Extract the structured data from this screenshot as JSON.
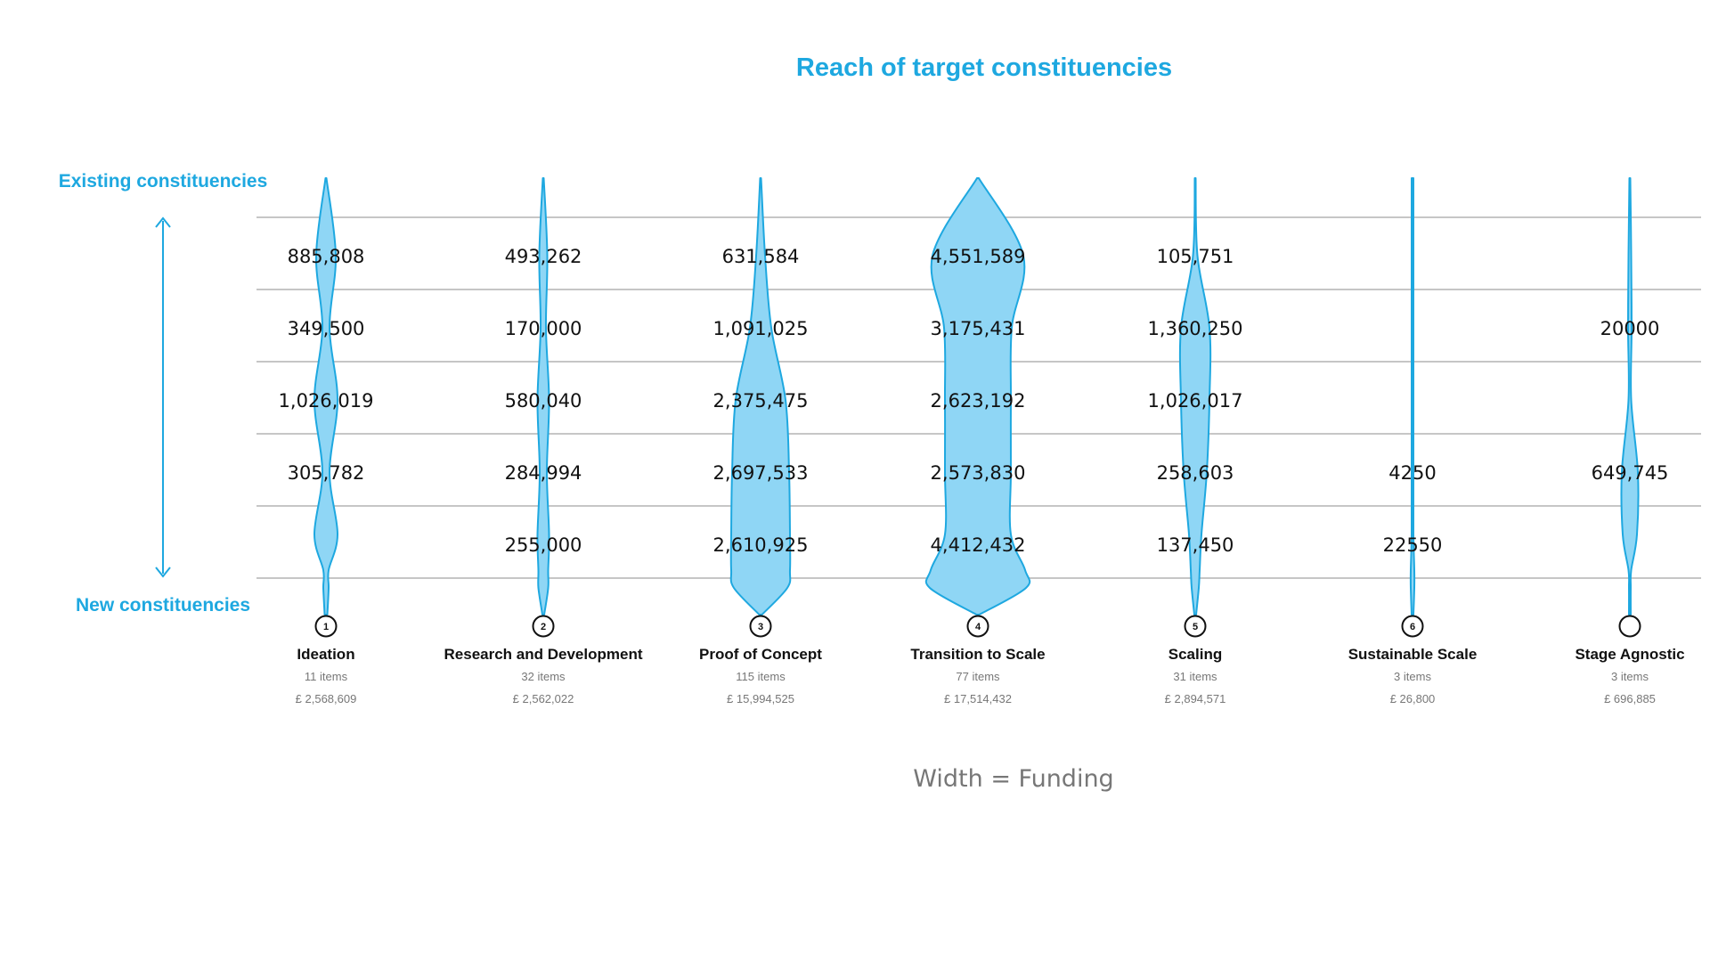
{
  "chart_data": {
    "type": "violin",
    "title": "Reach of target constituencies",
    "y_top_label": "Existing constituencies",
    "y_bottom_label": "New constituencies",
    "footnote": "Width = Funding",
    "accent_color": "#1ea8e0",
    "fill_color": "#8fd6f5",
    "grid_color": "#b3b3b3",
    "stages": [
      {
        "number": "1",
        "name": "Ideation",
        "items": "11 items",
        "funding": "£ 2,568,609",
        "values": [
          "885,808",
          "349,500",
          "1,026,019",
          "305,782",
          ""
        ],
        "profile": [
          0.5,
          11,
          4,
          13,
          4,
          13,
          3,
          3,
          1.5
        ]
      },
      {
        "number": "2",
        "name": "Research and Development",
        "items": "32 items",
        "funding": "£ 2,562,022",
        "values": [
          "493,262",
          "170,000",
          "580,040",
          "284,994",
          "255,000"
        ],
        "profile": [
          0.5,
          4.5,
          3,
          6.5,
          4,
          6.5,
          5.5,
          5.5,
          1
        ]
      },
      {
        "number": "3",
        "name": "Proof of Concept",
        "items": "115 items",
        "funding": "£ 15,994,525",
        "values": [
          "631,584",
          "1,091,025",
          "2,375,475",
          "2,697,533",
          "2,610,925"
        ],
        "profile": [
          0.5,
          5,
          12,
          28,
          32,
          33,
          33,
          30,
          1.5
        ]
      },
      {
        "number": "4",
        "name": "Transition to Scale",
        "items": "77 items",
        "funding": "£ 17,514,432",
        "values": [
          "4,551,589",
          "3,175,431",
          "2,623,192",
          "2,573,830",
          "4,412,432"
        ],
        "profile": [
          1,
          51,
          38,
          37,
          37,
          37,
          53,
          54,
          1.5
        ]
      },
      {
        "number": "5",
        "name": "Scaling",
        "items": "31 items",
        "funding": "£ 2,894,571",
        "values": [
          "105,751",
          "1,360,250",
          "1,026,017",
          "258,603",
          "137,450"
        ],
        "profile": [
          0.5,
          2.5,
          16,
          16,
          13,
          7,
          5,
          4,
          1
        ]
      },
      {
        "number": "6",
        "name": "Sustainable Scale",
        "items": "3 items",
        "funding": "£ 26,800",
        "values": [
          "",
          "",
          "",
          "4250",
          "22550"
        ],
        "profile": [
          1,
          1,
          1,
          1,
          1,
          1,
          2,
          2,
          1
        ]
      },
      {
        "number": "",
        "name": "Stage Agnostic",
        "items": "3 items",
        "funding": "£ 696,885",
        "values": [
          "",
          "20000",
          "",
          "649,745",
          ""
        ],
        "profile": [
          0.5,
          1.5,
          2,
          1.5,
          9,
          8,
          1.5,
          1,
          1
        ]
      }
    ]
  }
}
